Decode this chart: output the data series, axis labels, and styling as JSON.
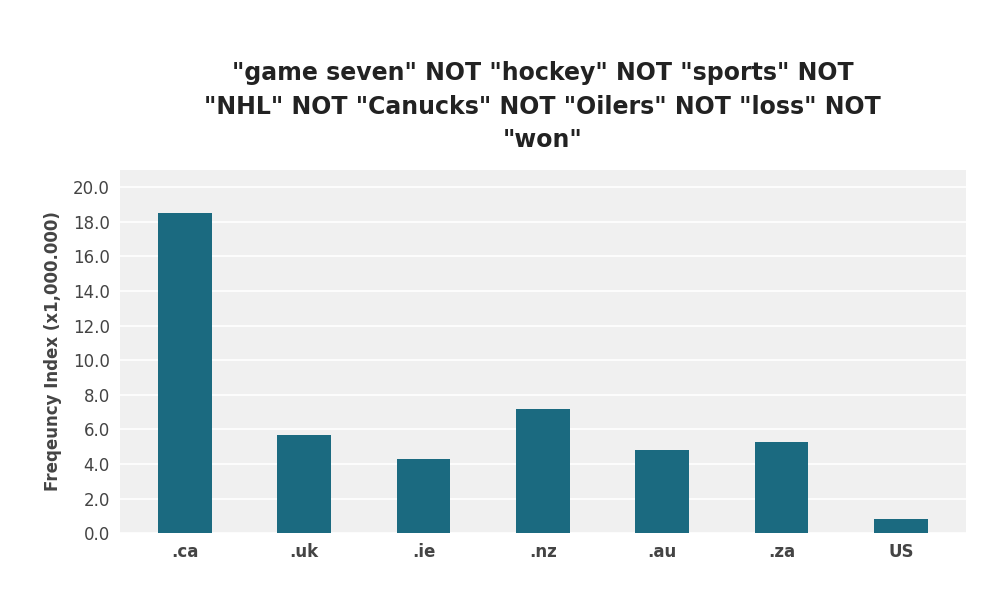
{
  "categories": [
    ".ca",
    ".uk",
    ".ie",
    ".nz",
    ".au",
    ".za",
    "US"
  ],
  "values": [
    18.5,
    5.7,
    4.3,
    7.2,
    4.8,
    5.25,
    0.85
  ],
  "bar_color": "#1b6a80",
  "title_line1": "\"game seven\" NOT \"hockey\" NOT \"sports\" NOT",
  "title_line2": "\"NHL\" NOT \"Canucks\" NOT \"Oilers\" NOT \"loss\" NOT",
  "title_line3": "\"won\"",
  "ylabel": "Freqeuncy Index (x1,000.000)",
  "ylim": [
    0,
    21
  ],
  "yticks": [
    0.0,
    2.0,
    4.0,
    6.0,
    8.0,
    10.0,
    12.0,
    14.0,
    16.0,
    18.0,
    20.0
  ],
  "plot_bg_color": "#f0f0f0",
  "fig_bg_color": "#ffffff",
  "grid_color": "#ffffff",
  "title_fontsize": 17,
  "tick_fontsize": 12,
  "ylabel_fontsize": 12,
  "bar_width": 0.45
}
